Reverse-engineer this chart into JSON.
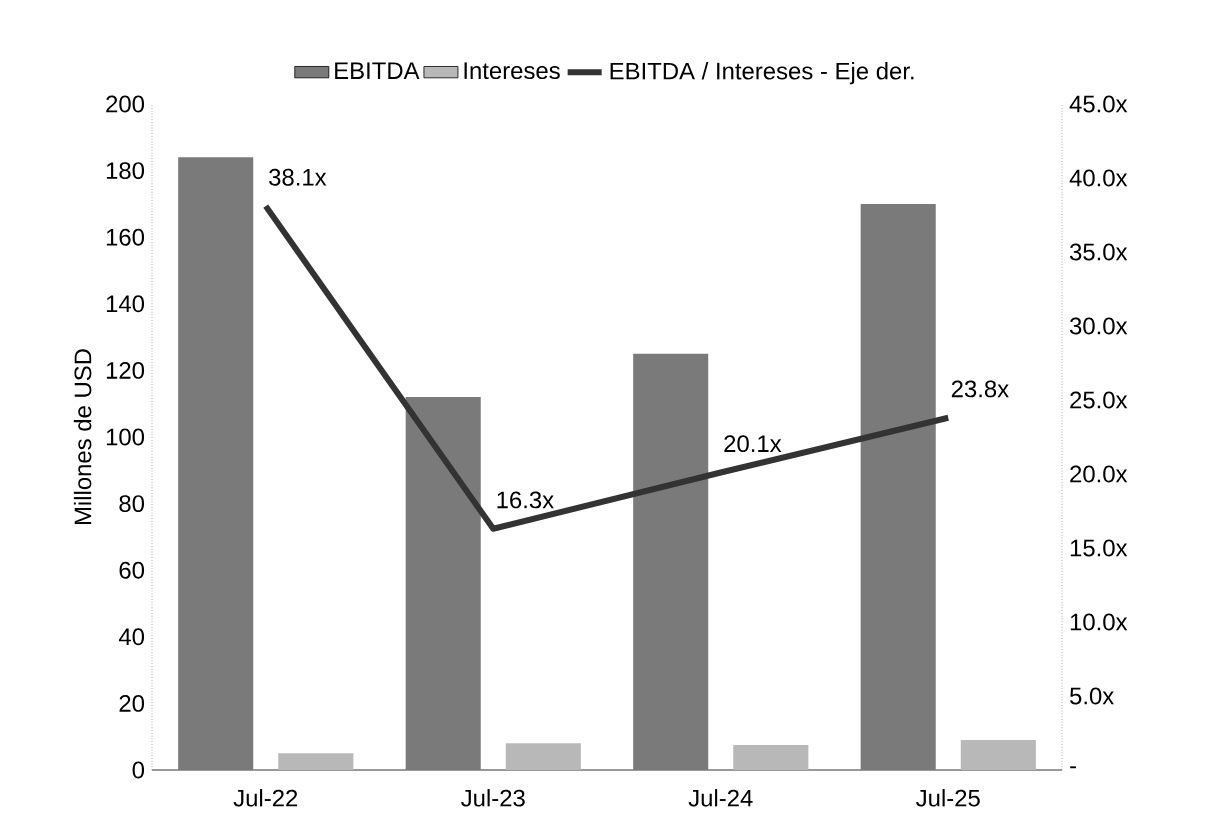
{
  "chart_data": {
    "type": "bar",
    "categories": [
      "Jul-22",
      "Jul-23",
      "Jul-24",
      "Jul-25"
    ],
    "series": [
      {
        "name": "EBITDA",
        "color": "#7a7a7a",
        "values": [
          184,
          112,
          125,
          170
        ]
      },
      {
        "name": "Intereses",
        "color": "#b8b8b8",
        "values": [
          5,
          8,
          7.5,
          9
        ]
      },
      {
        "name": "EBITDA / Intereses - Eje der.",
        "type": "line",
        "axis": "y2",
        "color": "#333333",
        "marker": "none",
        "line_style": "solid",
        "values": [
          38.1,
          16.3,
          20.1,
          23.8
        ],
        "value_labels": [
          "38.1x",
          "16.3x",
          "20.1x",
          "23.8x"
        ]
      }
    ],
    "ylabel": "Millones de USD",
    "ylim": [
      0,
      200
    ],
    "yticks": [
      0,
      20,
      40,
      60,
      80,
      100,
      120,
      140,
      160,
      180,
      200
    ],
    "y2lim": [
      0,
      45
    ],
    "y2ticks": [
      {
        "value": 0,
        "label": "-"
      },
      {
        "value": 5,
        "label": "5.0x"
      },
      {
        "value": 10,
        "label": "10.0x"
      },
      {
        "value": 15,
        "label": "15.0x"
      },
      {
        "value": 20,
        "label": "20.0x"
      },
      {
        "value": 25,
        "label": "25.0x"
      },
      {
        "value": 30,
        "label": "30.0x"
      },
      {
        "value": 35,
        "label": "35.0x"
      },
      {
        "value": 40,
        "label": "40.0x"
      },
      {
        "value": 45,
        "label": "45.0x"
      }
    ],
    "legend": "top"
  }
}
